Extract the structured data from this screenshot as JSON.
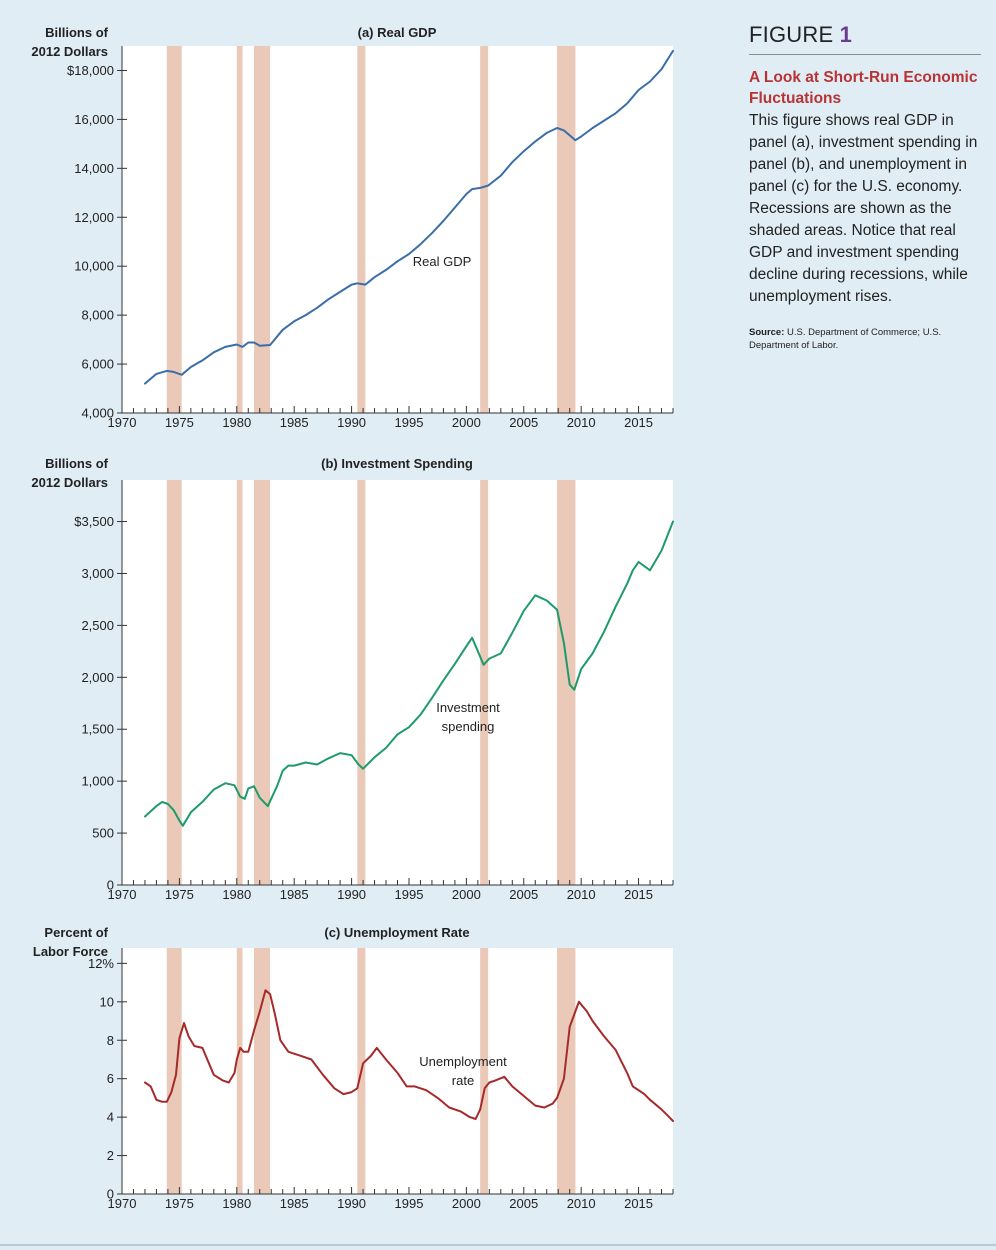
{
  "figure": {
    "label": "FIGURE",
    "number": "1",
    "title": "A Look at Short-Run Economic Fluctuations",
    "description": "This figure shows real GDP in panel (a), investment spending in panel (b), and unemployment in panel (c) for the U.S. economy. Recessions are shown as the shaded areas. Notice that real GDP and investment spending decline during recessions, while unemployment rises.",
    "source_label": "Source:",
    "source_text": "U.S. Department of Commerce; U.S. Department of Labor."
  },
  "colors": {
    "background": "#e1edf4",
    "plot_area": "#ffffff",
    "recession": "#eac9b8",
    "gdp_line": "#3a6ea8",
    "investment_line": "#1e9b6a",
    "unemployment_line": "#a52a2a",
    "title_accent": "#b83335"
  },
  "chart_data": [
    {
      "type": "line",
      "title": "(a) Real GDP",
      "ylabel": "Billions of 2012 Dollars",
      "ylabel_lines": [
        "Billions of",
        "2012 Dollars"
      ],
      "ylim": [
        4000,
        19000
      ],
      "xlim": [
        1970,
        2018
      ],
      "yticks": [
        4000,
        6000,
        8000,
        10000,
        12000,
        14000,
        16000,
        18000
      ],
      "ytick_labels": [
        "4,000",
        "6,000",
        "8,000",
        "10,000",
        "12,000",
        "14,000",
        "16,000",
        "$18,000"
      ],
      "xticks": [
        1970,
        1975,
        1980,
        1985,
        1990,
        1995,
        2000,
        2005,
        2010,
        2015
      ],
      "xtick_labels": [
        "1970",
        "1975",
        "1980",
        "1985",
        "1990",
        "1995",
        "2000",
        "2005",
        "2010",
        "2015"
      ],
      "recessions": [
        [
          1973.9,
          1975.2
        ],
        [
          1980.0,
          1980.5
        ],
        [
          1981.5,
          1982.9
        ],
        [
          1990.5,
          1991.2
        ],
        [
          2001.2,
          2001.9
        ],
        [
          2007.9,
          2009.5
        ]
      ],
      "series": [
        {
          "name": "Real GDP",
          "x": [
            1972.0,
            1973.0,
            1973.9,
            1974.5,
            1975.2,
            1976.0,
            1977.0,
            1978.0,
            1979.0,
            1980.0,
            1980.5,
            1981.0,
            1981.5,
            1982.0,
            1982.9,
            1984.0,
            1985.0,
            1986.0,
            1987.0,
            1988.0,
            1989.0,
            1990.0,
            1990.5,
            1991.2,
            1992.0,
            1993.0,
            1994.0,
            1995.0,
            1996.0,
            1997.0,
            1998.0,
            1999.0,
            2000.0,
            2000.5,
            2001.2,
            2001.9,
            2003.0,
            2004.0,
            2005.0,
            2006.0,
            2007.0,
            2007.9,
            2008.5,
            2009.5,
            2010.0,
            2011.0,
            2012.0,
            2013.0,
            2014.0,
            2015.0,
            2016.0,
            2017.0,
            2018.0
          ],
          "values": [
            5200,
            5600,
            5720,
            5680,
            5560,
            5880,
            6150,
            6480,
            6700,
            6800,
            6700,
            6880,
            6880,
            6750,
            6780,
            7400,
            7750,
            8000,
            8300,
            8650,
            8950,
            9250,
            9300,
            9250,
            9550,
            9850,
            10200,
            10500,
            10900,
            11350,
            11850,
            12400,
            12950,
            13150,
            13200,
            13300,
            13700,
            14250,
            14700,
            15100,
            15450,
            15650,
            15550,
            15150,
            15300,
            15650,
            15950,
            16250,
            16650,
            17200,
            17550,
            18050,
            18800
          ]
        }
      ],
      "annotations": [
        "Real GDP"
      ]
    },
    {
      "type": "line",
      "title": "(b) Investment Spending",
      "ylabel": "Billions of 2012 Dollars",
      "ylabel_lines": [
        "Billions of",
        "2012 Dollars"
      ],
      "ylim": [
        0,
        3900
      ],
      "xlim": [
        1970,
        2018
      ],
      "yticks": [
        0,
        500,
        1000,
        1500,
        2000,
        2500,
        3000,
        3500
      ],
      "ytick_labels": [
        "0",
        "500",
        "1,000",
        "1,500",
        "2,000",
        "2,500",
        "3,000",
        "$3,500"
      ],
      "xticks": [
        1970,
        1975,
        1980,
        1985,
        1990,
        1995,
        2000,
        2005,
        2010,
        2015
      ],
      "xtick_labels": [
        "1970",
        "1975",
        "1980",
        "1985",
        "1990",
        "1995",
        "2000",
        "2005",
        "2010",
        "2015"
      ],
      "recessions": [
        [
          1973.9,
          1975.2
        ],
        [
          1980.0,
          1980.5
        ],
        [
          1981.5,
          1982.9
        ],
        [
          1990.5,
          1991.2
        ],
        [
          2001.2,
          2001.9
        ],
        [
          2007.9,
          2009.5
        ]
      ],
      "series": [
        {
          "name": "Investment spending",
          "x": [
            1972.0,
            1973.0,
            1973.5,
            1974.0,
            1974.5,
            1975.0,
            1975.3,
            1976.0,
            1977.0,
            1978.0,
            1979.0,
            1979.8,
            1980.3,
            1980.7,
            1981.0,
            1981.5,
            1982.0,
            1982.7,
            1983.5,
            1984.0,
            1984.5,
            1985.0,
            1986.0,
            1987.0,
            1988.0,
            1989.0,
            1990.0,
            1990.6,
            1991.0,
            1992.0,
            1993.0,
            1994.0,
            1995.0,
            1996.0,
            1997.0,
            1998.0,
            1999.0,
            2000.0,
            2000.5,
            2001.0,
            2001.5,
            2002.0,
            2003.0,
            2004.0,
            2005.0,
            2006.0,
            2007.0,
            2007.9,
            2008.5,
            2009.0,
            2009.4,
            2010.0,
            2011.0,
            2012.0,
            2013.0,
            2014.0,
            2014.5,
            2015.0,
            2016.0,
            2017.0,
            2018.0
          ],
          "values": [
            660,
            760,
            800,
            780,
            720,
            620,
            570,
            700,
            800,
            920,
            980,
            960,
            850,
            830,
            930,
            950,
            840,
            760,
            950,
            1100,
            1150,
            1150,
            1180,
            1160,
            1220,
            1270,
            1250,
            1160,
            1120,
            1230,
            1320,
            1450,
            1520,
            1640,
            1800,
            1970,
            2130,
            2300,
            2380,
            2250,
            2120,
            2180,
            2230,
            2430,
            2640,
            2790,
            2740,
            2650,
            2330,
            1930,
            1880,
            2080,
            2230,
            2440,
            2680,
            2900,
            3030,
            3110,
            3030,
            3220,
            3500
          ]
        }
      ],
      "annotations": [
        "Investment",
        "spending"
      ]
    },
    {
      "type": "line",
      "title": "(c) Unemployment Rate",
      "ylabel": "Percent of Labor Force",
      "ylabel_lines": [
        "Percent of",
        "Labor Force"
      ],
      "ylim": [
        0,
        12.8
      ],
      "xlim": [
        1970,
        2018
      ],
      "yticks": [
        0,
        2,
        4,
        6,
        8,
        10,
        12
      ],
      "ytick_labels": [
        "0",
        "2",
        "4",
        "6",
        "8",
        "10",
        "12%"
      ],
      "xticks": [
        1970,
        1975,
        1980,
        1985,
        1990,
        1995,
        2000,
        2005,
        2010,
        2015
      ],
      "xtick_labels": [
        "1970",
        "1975",
        "1980",
        "1985",
        "1990",
        "1995",
        "2000",
        "2005",
        "2010",
        "2015"
      ],
      "recessions": [
        [
          1973.9,
          1975.2
        ],
        [
          1980.0,
          1980.5
        ],
        [
          1981.5,
          1982.9
        ],
        [
          1990.5,
          1991.2
        ],
        [
          2001.2,
          2001.9
        ],
        [
          2007.9,
          2009.5
        ]
      ],
      "series": [
        {
          "name": "Unemployment rate",
          "x": [
            1972.0,
            1972.5,
            1973.0,
            1973.5,
            1973.9,
            1974.3,
            1974.7,
            1975.0,
            1975.4,
            1975.8,
            1976.3,
            1977.0,
            1978.0,
            1978.8,
            1979.3,
            1979.8,
            1980.0,
            1980.3,
            1980.6,
            1981.0,
            1981.5,
            1982.0,
            1982.5,
            1982.9,
            1983.3,
            1983.8,
            1984.5,
            1985.5,
            1986.5,
            1987.5,
            1988.5,
            1989.3,
            1990.0,
            1990.5,
            1991.0,
            1991.7,
            1992.2,
            1993.0,
            1994.0,
            1994.8,
            1995.5,
            1996.5,
            1997.5,
            1998.5,
            1999.5,
            2000.3,
            2000.8,
            2001.2,
            2001.6,
            2002.0,
            2002.5,
            2003.3,
            2004.0,
            2005.0,
            2006.0,
            2006.8,
            2007.5,
            2007.9,
            2008.5,
            2009.0,
            2009.5,
            2009.8,
            2010.5,
            2011.0,
            2012.0,
            2013.0,
            2014.0,
            2014.5,
            2015.5,
            2016.0,
            2017.0,
            2017.5,
            2018.0
          ],
          "values": [
            5.8,
            5.6,
            4.9,
            4.8,
            4.8,
            5.3,
            6.2,
            8.1,
            8.9,
            8.2,
            7.7,
            7.6,
            6.2,
            5.9,
            5.8,
            6.3,
            7.0,
            7.6,
            7.4,
            7.4,
            8.5,
            9.5,
            10.6,
            10.4,
            9.4,
            8.0,
            7.4,
            7.2,
            7.0,
            6.2,
            5.5,
            5.2,
            5.3,
            5.5,
            6.8,
            7.2,
            7.6,
            7.0,
            6.3,
            5.6,
            5.6,
            5.4,
            5.0,
            4.5,
            4.3,
            4.0,
            3.9,
            4.4,
            5.5,
            5.8,
            5.9,
            6.1,
            5.6,
            5.1,
            4.6,
            4.5,
            4.7,
            5.0,
            6.0,
            8.7,
            9.5,
            10.0,
            9.5,
            9.0,
            8.2,
            7.5,
            6.3,
            5.6,
            5.2,
            4.9,
            4.4,
            4.1,
            3.8
          ]
        }
      ],
      "annotations": [
        "Unemployment",
        "rate"
      ]
    }
  ]
}
